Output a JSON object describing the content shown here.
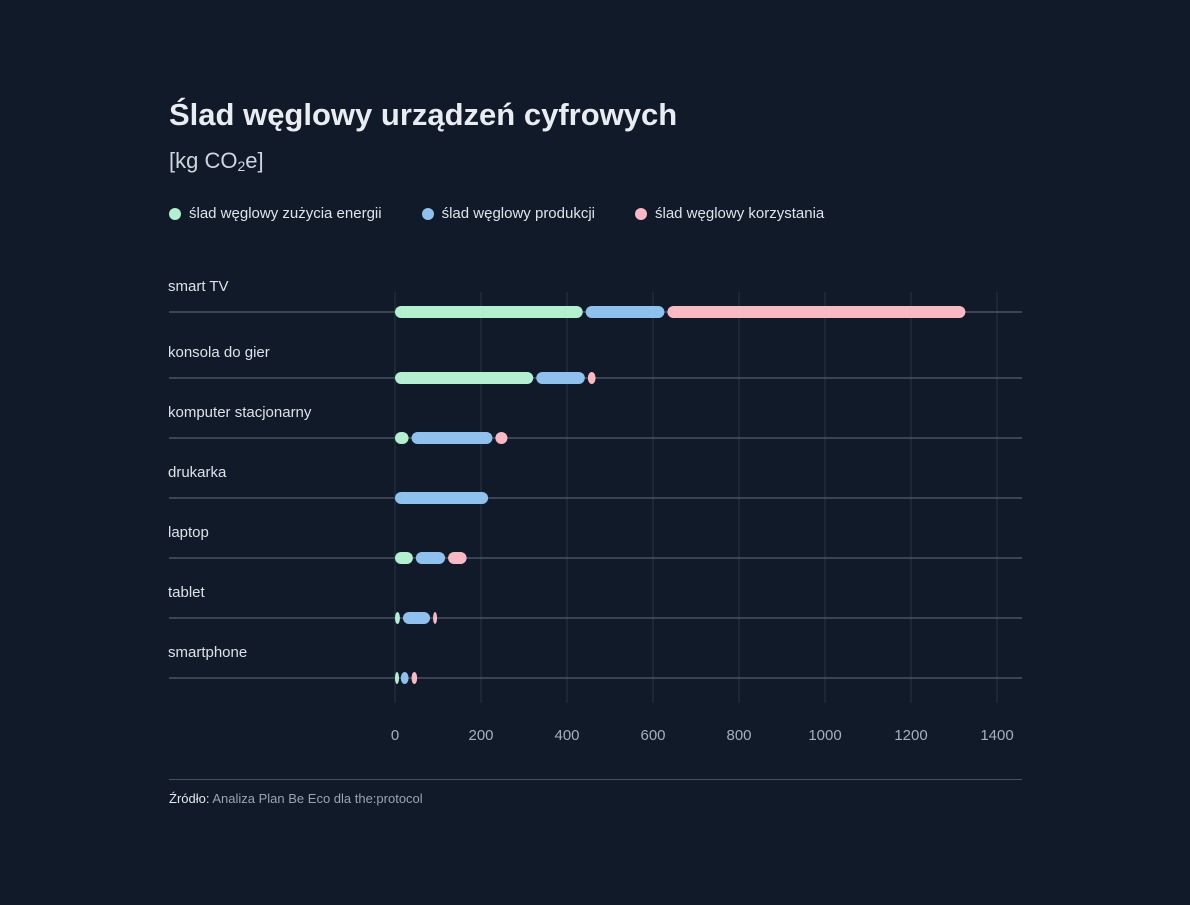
{
  "title": "Ślad węglowy urządzeń cyfrowych",
  "unit_prefix": "[kg CO",
  "unit_sub": "2",
  "unit_suffix": "e]",
  "colors": {
    "energy": "#b2f0cf",
    "production": "#8ec1ee",
    "usage": "#f8b9c4",
    "background": "#111a29",
    "grid": "#2b3443",
    "baseline": "#4a5262",
    "tick_text": "#a7afbc",
    "category_text": "#dde1e8"
  },
  "legend": [
    {
      "label": "ślad węglowy zużycia energii",
      "color": "#b2f0cf"
    },
    {
      "label": "ślad węglowy produkcji",
      "color": "#8ec1ee"
    },
    {
      "label": "ślad węglowy korzystania",
      "color": "#f8b9c4"
    }
  ],
  "source_label": "Źródło:",
  "source_text": "Analiza Plan Be Eco dla the:protocol",
  "chart_data": {
    "type": "bar",
    "orientation": "horizontal",
    "stacked": true,
    "categories": [
      "smart TV",
      "konsola do gier",
      "komputer stacjonarny",
      "drukarka",
      "laptop",
      "tablet",
      "smartphone"
    ],
    "series": [
      {
        "name": "ślad węglowy zużycia energii",
        "values": [
          440,
          325,
          35,
          0,
          45,
          15,
          10
        ]
      },
      {
        "name": "ślad węglowy produkcji",
        "values": [
          190,
          120,
          195,
          220,
          75,
          70,
          25
        ]
      },
      {
        "name": "ślad węglowy korzystania",
        "values": [
          700,
          25,
          35,
          0,
          50,
          15,
          20
        ]
      }
    ],
    "xticks": [
      0,
      200,
      400,
      600,
      800,
      1000,
      1200,
      1400
    ],
    "xlim": [
      0,
      1400
    ],
    "title": "Ślad węglowy urządzeń cyfrowych",
    "xlabel": "",
    "ylabel": "",
    "grid": "vertical",
    "legend_position": "top-left"
  }
}
